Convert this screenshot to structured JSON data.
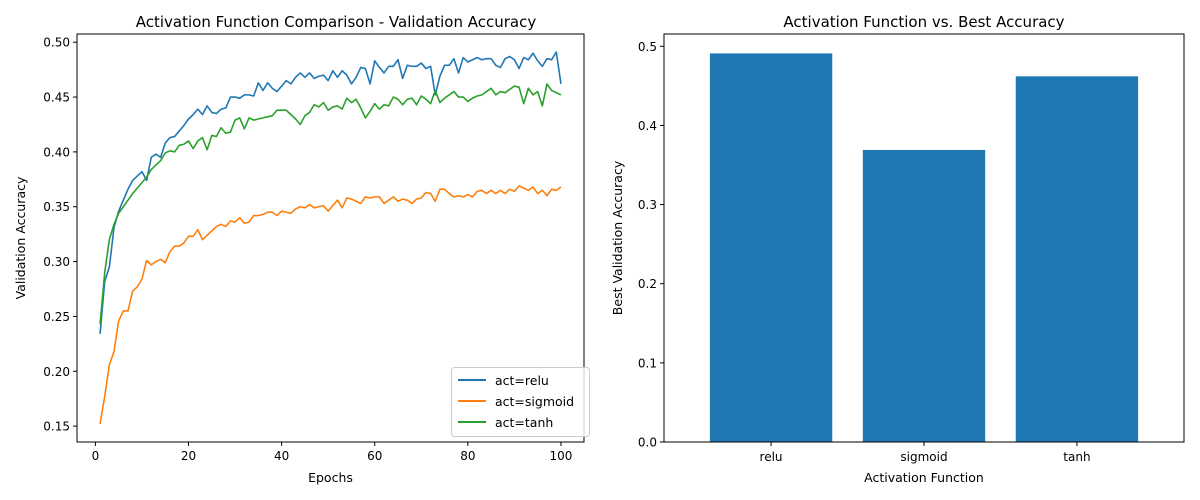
{
  "chart_data": [
    {
      "type": "line",
      "title": "Activation Function Comparison - Validation Accuracy",
      "xlabel": "Epochs",
      "ylabel": "Validation Accuracy",
      "xlim": [
        -3.95,
        104.95
      ],
      "ylim": [
        0.1355,
        0.5075
      ],
      "xticks": [
        0,
        20,
        40,
        60,
        80,
        100
      ],
      "yticks": [
        0.15,
        0.2,
        0.25,
        0.3,
        0.35,
        0.4,
        0.45,
        0.5
      ],
      "ytick_labels": [
        "0.15",
        "0.20",
        "0.25",
        "0.30",
        "0.35",
        "0.40",
        "0.45",
        "0.50"
      ],
      "legend_position": "lower right",
      "grid": false,
      "series": [
        {
          "name": "act=relu",
          "color": "#1f77b4",
          "x": [
            1,
            2,
            3,
            4,
            5,
            6,
            7,
            8,
            9,
            10,
            11,
            12,
            13,
            14,
            15,
            16,
            17,
            18,
            19,
            20,
            21,
            22,
            23,
            24,
            25,
            26,
            27,
            28,
            29,
            30,
            31,
            32,
            33,
            34,
            35,
            36,
            37,
            38,
            39,
            40,
            41,
            42,
            43,
            44,
            45,
            46,
            47,
            48,
            49,
            50,
            51,
            52,
            53,
            54,
            55,
            56,
            57,
            58,
            59,
            60,
            61,
            62,
            63,
            64,
            65,
            66,
            67,
            68,
            69,
            70,
            71,
            72,
            73,
            74,
            75,
            76,
            77,
            78,
            79,
            80,
            81,
            82,
            83,
            84,
            85,
            86,
            87,
            88,
            89,
            90,
            91,
            92,
            93,
            94,
            95,
            96,
            97,
            98,
            99,
            100
          ],
          "values": [
            0.234,
            0.282,
            0.295,
            0.331,
            0.346,
            0.356,
            0.366,
            0.374,
            0.378,
            0.382,
            0.374,
            0.395,
            0.398,
            0.395,
            0.408,
            0.413,
            0.414,
            0.419,
            0.424,
            0.43,
            0.434,
            0.439,
            0.434,
            0.442,
            0.436,
            0.435,
            0.439,
            0.44,
            0.45,
            0.45,
            0.449,
            0.452,
            0.452,
            0.451,
            0.463,
            0.456,
            0.463,
            0.458,
            0.455,
            0.46,
            0.465,
            0.462,
            0.468,
            0.472,
            0.468,
            0.472,
            0.467,
            0.469,
            0.47,
            0.465,
            0.474,
            0.468,
            0.474,
            0.47,
            0.462,
            0.468,
            0.477,
            0.476,
            0.462,
            0.483,
            0.477,
            0.472,
            0.478,
            0.478,
            0.484,
            0.467,
            0.479,
            0.478,
            0.478,
            0.481,
            0.476,
            0.478,
            0.452,
            0.469,
            0.479,
            0.479,
            0.485,
            0.472,
            0.486,
            0.482,
            0.484,
            0.486,
            0.484,
            0.485,
            0.485,
            0.479,
            0.477,
            0.485,
            0.487,
            0.484,
            0.476,
            0.486,
            0.484,
            0.49,
            0.483,
            0.478,
            0.485,
            0.484,
            0.491,
            0.462
          ]
        },
        {
          "name": "act=sigmoid",
          "color": "#ff7f0e",
          "x": [
            1,
            2,
            3,
            4,
            5,
            6,
            7,
            8,
            9,
            10,
            11,
            12,
            13,
            14,
            15,
            16,
            17,
            18,
            19,
            20,
            21,
            22,
            23,
            24,
            25,
            26,
            27,
            28,
            29,
            30,
            31,
            32,
            33,
            34,
            35,
            36,
            37,
            38,
            39,
            40,
            41,
            42,
            43,
            44,
            45,
            46,
            47,
            48,
            49,
            50,
            51,
            52,
            53,
            54,
            55,
            56,
            57,
            58,
            59,
            60,
            61,
            62,
            63,
            64,
            65,
            66,
            67,
            68,
            69,
            70,
            71,
            72,
            73,
            74,
            75,
            76,
            77,
            78,
            79,
            80,
            81,
            82,
            83,
            84,
            85,
            86,
            87,
            88,
            89,
            90,
            91,
            92,
            93,
            94,
            95,
            96,
            97,
            98,
            99,
            100
          ],
          "values": [
            0.152,
            0.177,
            0.206,
            0.218,
            0.246,
            0.255,
            0.255,
            0.273,
            0.277,
            0.284,
            0.301,
            0.297,
            0.3,
            0.302,
            0.299,
            0.309,
            0.314,
            0.314,
            0.317,
            0.323,
            0.323,
            0.329,
            0.32,
            0.324,
            0.328,
            0.332,
            0.334,
            0.332,
            0.337,
            0.336,
            0.34,
            0.335,
            0.336,
            0.342,
            0.342,
            0.343,
            0.345,
            0.345,
            0.342,
            0.346,
            0.345,
            0.344,
            0.348,
            0.35,
            0.349,
            0.352,
            0.349,
            0.35,
            0.351,
            0.346,
            0.351,
            0.356,
            0.349,
            0.358,
            0.357,
            0.355,
            0.353,
            0.359,
            0.358,
            0.359,
            0.359,
            0.353,
            0.356,
            0.359,
            0.355,
            0.357,
            0.356,
            0.353,
            0.357,
            0.358,
            0.363,
            0.362,
            0.355,
            0.366,
            0.366,
            0.362,
            0.359,
            0.36,
            0.359,
            0.361,
            0.359,
            0.364,
            0.365,
            0.362,
            0.365,
            0.362,
            0.365,
            0.362,
            0.366,
            0.364,
            0.369,
            0.367,
            0.365,
            0.368,
            0.362,
            0.365,
            0.36,
            0.366,
            0.365,
            0.368
          ]
        },
        {
          "name": "act=tanh",
          "color": "#2ca02c",
          "x": [
            1,
            2,
            3,
            4,
            5,
            6,
            7,
            8,
            9,
            10,
            11,
            12,
            13,
            14,
            15,
            16,
            17,
            18,
            19,
            20,
            21,
            22,
            23,
            24,
            25,
            26,
            27,
            28,
            29,
            30,
            31,
            32,
            33,
            34,
            35,
            36,
            37,
            38,
            39,
            40,
            41,
            42,
            43,
            44,
            45,
            46,
            47,
            48,
            49,
            50,
            51,
            52,
            53,
            54,
            55,
            56,
            57,
            58,
            59,
            60,
            61,
            62,
            63,
            64,
            65,
            66,
            67,
            68,
            69,
            70,
            71,
            72,
            73,
            74,
            75,
            76,
            77,
            78,
            79,
            80,
            81,
            82,
            83,
            84,
            85,
            86,
            87,
            88,
            89,
            90,
            91,
            92,
            93,
            94,
            95,
            96,
            97,
            98,
            99,
            100
          ],
          "values": [
            0.243,
            0.29,
            0.32,
            0.334,
            0.344,
            0.35,
            0.356,
            0.362,
            0.367,
            0.372,
            0.377,
            0.384,
            0.388,
            0.392,
            0.399,
            0.401,
            0.4,
            0.406,
            0.407,
            0.41,
            0.403,
            0.41,
            0.413,
            0.402,
            0.415,
            0.414,
            0.422,
            0.417,
            0.418,
            0.429,
            0.431,
            0.421,
            0.431,
            0.429,
            0.43,
            0.431,
            0.432,
            0.433,
            0.438,
            0.438,
            0.438,
            0.434,
            0.43,
            0.425,
            0.433,
            0.436,
            0.443,
            0.441,
            0.445,
            0.438,
            0.441,
            0.442,
            0.439,
            0.449,
            0.445,
            0.448,
            0.44,
            0.431,
            0.437,
            0.444,
            0.439,
            0.443,
            0.442,
            0.45,
            0.448,
            0.443,
            0.448,
            0.449,
            0.443,
            0.451,
            0.448,
            0.444,
            0.456,
            0.445,
            0.449,
            0.452,
            0.455,
            0.45,
            0.45,
            0.446,
            0.449,
            0.451,
            0.452,
            0.455,
            0.458,
            0.452,
            0.455,
            0.454,
            0.457,
            0.46,
            0.459,
            0.444,
            0.458,
            0.452,
            0.455,
            0.442,
            0.462,
            0.456,
            0.454,
            0.452
          ]
        }
      ]
    },
    {
      "type": "bar",
      "title": "Activation Function vs. Best Accuracy",
      "xlabel": "Activation Function",
      "ylabel": "Best Validation Accuracy",
      "categories": [
        "relu",
        "sigmoid",
        "tanh"
      ],
      "values": [
        0.491,
        0.369,
        0.462
      ],
      "color": "#1f77b4",
      "ylim": [
        0,
        0.5155
      ],
      "yticks": [
        0.0,
        0.1,
        0.2,
        0.3,
        0.4,
        0.5
      ],
      "ytick_labels": [
        "0.0",
        "0.1",
        "0.2",
        "0.3",
        "0.4",
        "0.5"
      ],
      "grid": false
    }
  ]
}
